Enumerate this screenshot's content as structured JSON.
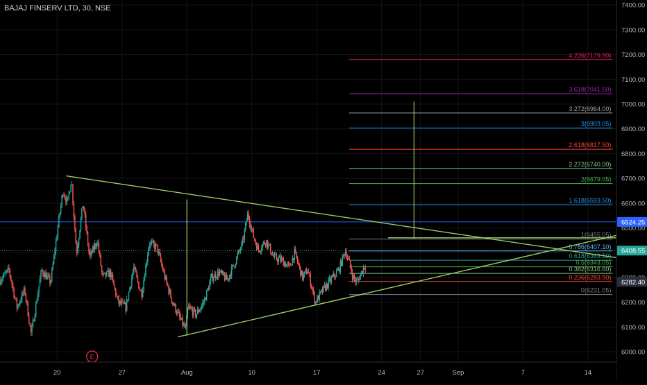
{
  "header": {
    "title": "BAJAJ FINSERV LTD, 30, NSE"
  },
  "colors": {
    "background": "#000000",
    "grid": "#141414",
    "axis_text": "#b2b5be",
    "up": "#26a69a",
    "down": "#ef5350",
    "trendline": "#9ccc65",
    "price_line": "#2962ff"
  },
  "chart_data": {
    "type": "candlestick",
    "title": "BAJAJ FINSERV LTD, 30, NSE",
    "ylim": [
      5880,
      7420
    ],
    "y_ticks": [
      "7400.00",
      "7300.00",
      "7200.00",
      "7100.00",
      "7000.00",
      "6900.00",
      "6800.00",
      "6700.00",
      "6600.00",
      "6500.00",
      "6400.00",
      "6300.00",
      "6200.00",
      "6100.00",
      "6000.00"
    ],
    "x_ticks": [
      {
        "label": "20",
        "session": 0.5
      },
      {
        "label": "27",
        "session": 5.5
      },
      {
        "label": "Aug",
        "session": 10.5
      },
      {
        "label": "10",
        "session": 15.5
      },
      {
        "label": "17",
        "session": 20.5
      },
      {
        "label": "24",
        "session": 25.5
      },
      {
        "label": "27",
        "session": 28.5
      },
      {
        "label": "Sep",
        "session": 31.4
      },
      {
        "label": "7",
        "session": 36.4
      },
      {
        "label": "14",
        "session": 41.4
      }
    ],
    "xlim": [
      -3.9,
      43.6
    ],
    "candles_per_session": 13,
    "candle_sessions": 28.3,
    "anchors": [
      [
        -3.9,
        6290
      ],
      [
        -3.2,
        6330
      ],
      [
        -2.6,
        6180
      ],
      [
        -2.0,
        6250
      ],
      [
        -1.5,
        6070
      ],
      [
        -0.7,
        6330
      ],
      [
        0.0,
        6280
      ],
      [
        0.6,
        6520
      ],
      [
        0.95,
        6650
      ],
      [
        1.3,
        6600
      ],
      [
        1.6,
        6700
      ],
      [
        2.0,
        6400
      ],
      [
        2.5,
        6600
      ],
      [
        3.0,
        6380
      ],
      [
        3.6,
        6450
      ],
      [
        4.0,
        6300
      ],
      [
        4.6,
        6320
      ],
      [
        5.2,
        6200
      ],
      [
        5.8,
        6180
      ],
      [
        6.4,
        6340
      ],
      [
        7.0,
        6230
      ],
      [
        7.6,
        6440
      ],
      [
        8.2,
        6420
      ],
      [
        8.8,
        6300
      ],
      [
        9.4,
        6200
      ],
      [
        10.0,
        6130
      ],
      [
        10.4,
        6090
      ],
      [
        10.6,
        6180
      ],
      [
        11.2,
        6150
      ],
      [
        11.8,
        6200
      ],
      [
        12.4,
        6300
      ],
      [
        13.0,
        6320
      ],
      [
        13.6,
        6290
      ],
      [
        14.2,
        6360
      ],
      [
        14.8,
        6440
      ],
      [
        15.2,
        6560
      ],
      [
        15.6,
        6470
      ],
      [
        16.0,
        6410
      ],
      [
        16.6,
        6450
      ],
      [
        17.2,
        6380
      ],
      [
        17.8,
        6370
      ],
      [
        18.4,
        6340
      ],
      [
        18.8,
        6400
      ],
      [
        19.4,
        6300
      ],
      [
        19.8,
        6330
      ],
      [
        20.4,
        6200
      ],
      [
        21.0,
        6250
      ],
      [
        21.6,
        6290
      ],
      [
        22.2,
        6330
      ],
      [
        22.7,
        6410
      ],
      [
        23.0,
        6360
      ],
      [
        23.3,
        6300
      ],
      [
        23.6,
        6280
      ],
      [
        24.2,
        6350
      ],
      [
        24.8,
        6300
      ],
      [
        25.4,
        6350
      ],
      [
        25.8,
        6420
      ],
      [
        26.0,
        6440
      ],
      [
        26.2,
        6410
      ]
    ],
    "annotations": [
      {
        "label": "6524.25",
        "price": 6524.25,
        "color": "#2962ff"
      },
      {
        "label": "6408.55",
        "price": 6408.55,
        "color": "#26a69a"
      },
      {
        "label": "6282.40",
        "price": 6282.4,
        "color": "#2a2e39"
      }
    ],
    "fib_levels": [
      {
        "label": "4.236(7179.90)",
        "price": 7179.9,
        "color": "#e91e63"
      },
      {
        "label": "3.618(7041.50)",
        "price": 7041.5,
        "color": "#9c27b0"
      },
      {
        "label": "3.272(6964.00)",
        "price": 6964.0,
        "color": "#9e9e9e"
      },
      {
        "label": "3(6903.05)",
        "price": 6903.05,
        "color": "#2196f3"
      },
      {
        "label": "2.618(6817.50)",
        "price": 6817.5,
        "color": "#f44336"
      },
      {
        "label": "2.272(6740.00)",
        "price": 6740.0,
        "color": "#81c784"
      },
      {
        "label": "2(6679.05)",
        "price": 6679.05,
        "color": "#4caf50"
      },
      {
        "label": "1.618(6593.50)",
        "price": 6593.5,
        "color": "#2196f3"
      },
      {
        "label": "1(6455.05)",
        "price": 6455.05,
        "color": "#787b86"
      },
      {
        "label": "0.786(6407.10)",
        "price": 6407.1,
        "color": "#64b5f6"
      },
      {
        "label": "0.618(6369.50)",
        "price": 6369.5,
        "color": "#26a69a"
      },
      {
        "label": "0.5(6343.05)",
        "price": 6343.05,
        "color": "#4caf50"
      },
      {
        "label": "0.382(6316.60)",
        "price": 6316.6,
        "color": "#81c784"
      },
      {
        "label": "0.236(6283.90)",
        "price": 6283.9,
        "color": "#f44336"
      },
      {
        "label": "0(6231.05)",
        "price": 6231.05,
        "color": "#787b86"
      }
    ],
    "fib_start_session": 23.0,
    "fib_end_session": 43.3,
    "trendlines": [
      {
        "name": "upper-trendline",
        "from": [
          1.2,
          6710
        ],
        "to": [
          43.6,
          6380
        ]
      },
      {
        "name": "lower-trendline",
        "from": [
          9.8,
          6060
        ],
        "to": [
          43.6,
          6470
        ]
      },
      {
        "name": "upper-trendline-2",
        "from": [
          26.0,
          6460
        ],
        "to": [
          43.6,
          6460
        ]
      }
    ],
    "vertical_lines": [
      {
        "name": "vertical-line-left",
        "session": 10.5,
        "from": 6065,
        "to": 6615
      },
      {
        "name": "vertical-line-right",
        "session": 28.0,
        "from": 6455,
        "to": 7010
      }
    ],
    "event_marker": {
      "label": "E",
      "session": 3.2,
      "color": "#f23645"
    }
  }
}
